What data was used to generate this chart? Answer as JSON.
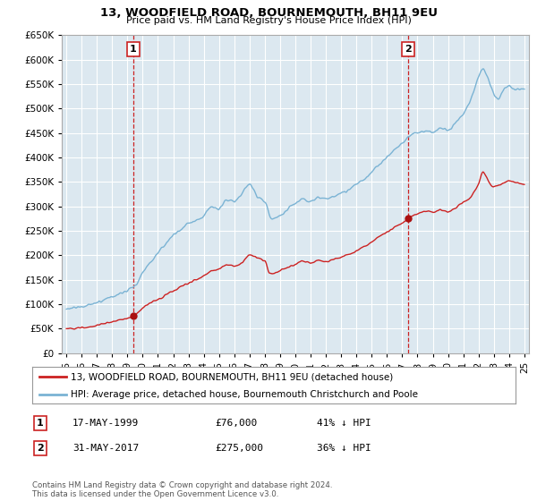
{
  "title": "13, WOODFIELD ROAD, BOURNEMOUTH, BH11 9EU",
  "subtitle": "Price paid vs. HM Land Registry's House Price Index (HPI)",
  "legend_line1": "13, WOODFIELD ROAD, BOURNEMOUTH, BH11 9EU (detached house)",
  "legend_line2": "HPI: Average price, detached house, Bournemouth Christchurch and Poole",
  "footer": "Contains HM Land Registry data © Crown copyright and database right 2024.\nThis data is licensed under the Open Government Licence v3.0.",
  "sale1_label": "1",
  "sale1_date": "17-MAY-1999",
  "sale1_price": "£76,000",
  "sale1_hpi": "41% ↓ HPI",
  "sale1_x": 1999.37,
  "sale1_y": 76000,
  "sale2_label": "2",
  "sale2_date": "31-MAY-2017",
  "sale2_price": "£275,000",
  "sale2_hpi": "36% ↓ HPI",
  "sale2_x": 2017.41,
  "sale2_y": 275000,
  "hpi_color": "#7ab3d4",
  "price_color": "#cc2222",
  "marker_color": "#aa1111",
  "vline_color": "#cc2222",
  "background_color": "#ffffff",
  "plot_bg_color": "#dce8f0",
  "grid_color": "#ffffff",
  "ylim": [
    0,
    650000
  ],
  "yticks": [
    0,
    50000,
    100000,
    150000,
    200000,
    250000,
    300000,
    350000,
    400000,
    450000,
    500000,
    550000,
    600000,
    650000
  ],
  "xlim_start": 1994.7,
  "xlim_end": 2025.3
}
